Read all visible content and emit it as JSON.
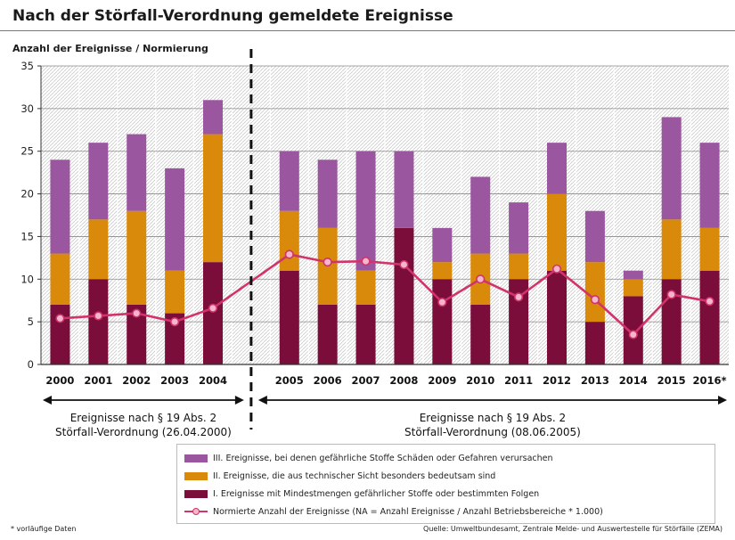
{
  "title": "Nach der Störfall-Verordnung gemeldete Ereignisse",
  "footnote": "* vorläufige Daten",
  "source": "Quelle: Umweltbundesamt, Zentrale Melde- und Auswertestelle für Störfälle (ZEMA)",
  "colors": {
    "cat1": "#7a0d3a",
    "cat2": "#d98a0b",
    "cat3": "#9b56a0",
    "line": "#d1336a",
    "marker_fill": "#f4b6cc"
  },
  "chart_data": {
    "type": "bar",
    "title": "Nach der Störfall-Verordnung gemeldete Ereignisse",
    "ylabel": "Anzahl der Ereignisse / Normierung",
    "xlabel": "",
    "ylim": [
      0,
      35
    ],
    "yticks": [
      0,
      5,
      10,
      15,
      20,
      25,
      30,
      35
    ],
    "grid": true,
    "stacked": true,
    "legend_position": "bottom",
    "categories": [
      "2000",
      "2001",
      "2002",
      "2003",
      "2004",
      "2005",
      "2006",
      "2007",
      "2008",
      "2009",
      "2010",
      "2011",
      "2012",
      "2013",
      "2014",
      "2015",
      "2016*"
    ],
    "series": [
      {
        "name": "I. Ereignisse mit Mindestmengen gefährlicher Stoffe oder bestimmten Folgen",
        "values": [
          7,
          10,
          7,
          6,
          12,
          11,
          7,
          7,
          16,
          10,
          7,
          10,
          11,
          5,
          8,
          10,
          11
        ]
      },
      {
        "name": "II. Ereignisse, die aus technischer Sicht besonders bedeutsam sind",
        "values": [
          6,
          7,
          11,
          5,
          15,
          7,
          9,
          4,
          0,
          2,
          6,
          3,
          9,
          7,
          2,
          7,
          5
        ]
      },
      {
        "name": "III. Ereignisse, bei denen gefährliche Stoffe Schäden oder Gefahren verursachen",
        "values": [
          11,
          9,
          9,
          12,
          4,
          7,
          8,
          14,
          9,
          4,
          9,
          6,
          6,
          6,
          1,
          12,
          10
        ]
      }
    ],
    "line_series": {
      "name": "Normierte Anzahl der Ereignisse (NA = Anzahl Ereignisse / Anzahl Betriebsbereiche * 1.000)",
      "values": [
        5.4,
        5.7,
        6.0,
        5.0,
        6.6,
        12.9,
        12.0,
        12.1,
        11.7,
        7.3,
        10.0,
        7.9,
        11.2,
        7.6,
        3.5,
        8.2,
        7.4
      ]
    },
    "period_divider_after": "2004",
    "periods": [
      {
        "line1": "Ereignisse nach § 19 Abs. 2",
        "line2": "Störfall-Verordnung (26.04.2000)"
      },
      {
        "line1": "Ereignisse nach § 19 Abs. 2",
        "line2": "Störfall-Verordnung (08.06.2005)"
      }
    ]
  },
  "legend": {
    "items": [
      {
        "label": "III. Ereignisse, bei denen gefährliche Stoffe Schäden oder Gefahren verursachen",
        "swatch": "#9b56a0"
      },
      {
        "label": "II. Ereignisse, die aus technischer Sicht besonders bedeutsam sind",
        "swatch": "#d98a0b"
      },
      {
        "label": "I. Ereignisse mit Mindestmengen gefährlicher Stoffe oder bestimmten Folgen",
        "swatch": "#7a0d3a"
      }
    ],
    "line_label": "Normierte Anzahl der Ereignisse (NA = Anzahl Ereignisse / Anzahl Betriebsbereiche * 1.000)"
  }
}
